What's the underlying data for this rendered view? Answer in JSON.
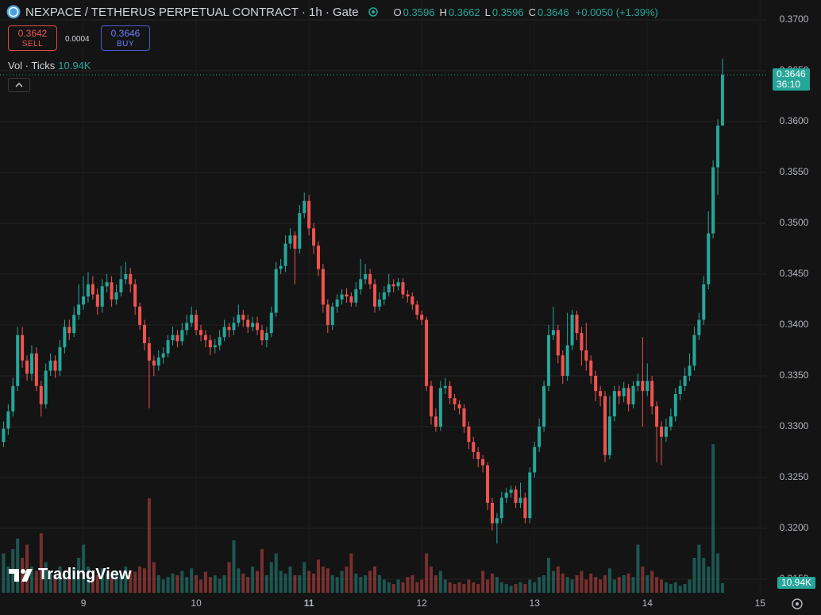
{
  "chart_data": {
    "type": "candlestick",
    "title": "NEXPACE / TETHERUS PERPETUAL CONTRACT · 1h · Gate",
    "ohlc_labels": [
      "O",
      "H",
      "L",
      "C"
    ],
    "change": "+0.0050 (+1.39%)",
    "volume_indicator": "Vol · Ticks",
    "volume_last_label": "10.94K",
    "countdown": "36:10",
    "up_color": "#26a69a",
    "down_color": "#ef5350",
    "grid": true,
    "ylim": [
      0.31351,
      0.37195
    ],
    "yticks": [
      {
        "value": 0.315,
        "label": "0.3150"
      },
      {
        "value": 0.32,
        "label": "0.3200"
      },
      {
        "value": 0.325,
        "label": "0.3250"
      },
      {
        "value": 0.33,
        "label": "0.3300"
      },
      {
        "value": 0.335,
        "label": "0.3350"
      },
      {
        "value": 0.34,
        "label": "0.3400"
      },
      {
        "value": 0.345,
        "label": "0.3450"
      },
      {
        "value": 0.35,
        "label": "0.3500"
      },
      {
        "value": 0.355,
        "label": "0.3550"
      },
      {
        "value": 0.36,
        "label": "0.3600"
      },
      {
        "value": 0.365,
        "label": "0.3650"
      },
      {
        "value": 0.37,
        "label": "0.3700"
      }
    ],
    "xlim": [
      -0.75,
      162.3
    ],
    "xticks": [
      {
        "value": 17,
        "label": "9"
      },
      {
        "value": 41,
        "label": "10"
      },
      {
        "value": 65,
        "label": "11"
      },
      {
        "value": 89,
        "label": "12"
      },
      {
        "value": 113,
        "label": "13"
      },
      {
        "value": 137,
        "label": "14"
      },
      {
        "value": 161,
        "label": "15"
      }
    ],
    "y2lim": [
      0,
      200000
    ],
    "open": [
      0.3285,
      0.3298,
      0.3315,
      0.334,
      0.339,
      0.3365,
      0.3352,
      0.3372,
      0.334,
      0.3322,
      0.3355,
      0.3365,
      0.3355,
      0.3378,
      0.3398,
      0.3392,
      0.341,
      0.342,
      0.3428,
      0.344,
      0.343,
      0.3418,
      0.3438,
      0.3442,
      0.3425,
      0.3432,
      0.3445,
      0.345,
      0.344,
      0.3418,
      0.34,
      0.3382,
      0.3365,
      0.336,
      0.3368,
      0.3372,
      0.3385,
      0.339,
      0.3384,
      0.3395,
      0.3402,
      0.341,
      0.3395,
      0.339,
      0.3385,
      0.3378,
      0.338,
      0.3388,
      0.3398,
      0.3395,
      0.3402,
      0.341,
      0.3405,
      0.3398,
      0.3402,
      0.3395,
      0.3385,
      0.3392,
      0.3412,
      0.3455,
      0.3458,
      0.348,
      0.3488,
      0.3475,
      0.351,
      0.3522,
      0.3495,
      0.3478,
      0.3455,
      0.342,
      0.34,
      0.3418,
      0.3425,
      0.343,
      0.3428,
      0.3422,
      0.3435,
      0.3445,
      0.345,
      0.344,
      0.3418,
      0.3425,
      0.3432,
      0.344,
      0.3438,
      0.3442,
      0.343,
      0.3428,
      0.342,
      0.341,
      0.3405,
      0.334,
      0.331,
      0.33,
      0.3338,
      0.334,
      0.3328,
      0.3322,
      0.3318,
      0.33,
      0.3285,
      0.3275,
      0.3268,
      0.3262,
      0.3225,
      0.3205,
      0.321,
      0.323,
      0.3235,
      0.3238,
      0.3225,
      0.323,
      0.321,
      0.3255,
      0.328,
      0.33,
      0.334,
      0.339,
      0.3395,
      0.337,
      0.335,
      0.338,
      0.341,
      0.3392,
      0.3375,
      0.3365,
      0.335,
      0.3335,
      0.333,
      0.3272,
      0.331,
      0.3335,
      0.333,
      0.3338,
      0.3322,
      0.334,
      0.3345,
      0.3335,
      0.3345,
      0.332,
      0.33,
      0.329,
      0.33,
      0.331,
      0.3332,
      0.334,
      0.335,
      0.336,
      0.339,
      0.3405,
      0.344,
      0.349,
      0.3555,
      0.3596
    ],
    "high": [
      0.3305,
      0.3322,
      0.3348,
      0.3398,
      0.3398,
      0.337,
      0.338,
      0.3378,
      0.3345,
      0.3362,
      0.3372,
      0.337,
      0.3385,
      0.3405,
      0.3405,
      0.3418,
      0.344,
      0.3448,
      0.3452,
      0.3448,
      0.3436,
      0.3445,
      0.345,
      0.3448,
      0.344,
      0.3458,
      0.3462,
      0.3456,
      0.3445,
      0.3422,
      0.3405,
      0.3388,
      0.337,
      0.3375,
      0.3378,
      0.339,
      0.3398,
      0.3395,
      0.3402,
      0.341,
      0.3418,
      0.3415,
      0.34,
      0.3395,
      0.339,
      0.3386,
      0.3395,
      0.3405,
      0.3402,
      0.3408,
      0.342,
      0.3415,
      0.341,
      0.3408,
      0.3408,
      0.34,
      0.3398,
      0.3418,
      0.3462,
      0.3465,
      0.3488,
      0.3495,
      0.3492,
      0.3518,
      0.353,
      0.3528,
      0.35,
      0.3482,
      0.346,
      0.3425,
      0.3422,
      0.343,
      0.3435,
      0.3436,
      0.3432,
      0.3442,
      0.3465,
      0.346,
      0.3455,
      0.3445,
      0.3432,
      0.3438,
      0.345,
      0.3445,
      0.3446,
      0.3446,
      0.3434,
      0.3432,
      0.3424,
      0.3414,
      0.3408,
      0.3345,
      0.3318,
      0.3345,
      0.3348,
      0.3345,
      0.3332,
      0.3326,
      0.3322,
      0.3305,
      0.329,
      0.328,
      0.3272,
      0.3265,
      0.323,
      0.3215,
      0.3236,
      0.324,
      0.3242,
      0.3242,
      0.3245,
      0.3235,
      0.326,
      0.3285,
      0.3308,
      0.3345,
      0.34,
      0.3418,
      0.34,
      0.3375,
      0.3412,
      0.3415,
      0.3414,
      0.3398,
      0.3402,
      0.337,
      0.3355,
      0.334,
      0.3335,
      0.333,
      0.334,
      0.334,
      0.3344,
      0.3342,
      0.3345,
      0.3352,
      0.3388,
      0.3362,
      0.335,
      0.3325,
      0.3305,
      0.3308,
      0.3318,
      0.3338,
      0.3346,
      0.3358,
      0.3372,
      0.3398,
      0.3412,
      0.3448,
      0.3512,
      0.3562,
      0.3602,
      0.3662
    ],
    "low": [
      0.328,
      0.3292,
      0.331,
      0.3335,
      0.3358,
      0.3345,
      0.3345,
      0.3335,
      0.331,
      0.3318,
      0.335,
      0.3348,
      0.335,
      0.3372,
      0.3385,
      0.3388,
      0.3405,
      0.3415,
      0.3422,
      0.3425,
      0.341,
      0.3412,
      0.3432,
      0.3418,
      0.342,
      0.3428,
      0.344,
      0.3432,
      0.341,
      0.3395,
      0.3375,
      0.3318,
      0.335,
      0.3355,
      0.3362,
      0.3368,
      0.338,
      0.3378,
      0.338,
      0.339,
      0.3398,
      0.339,
      0.3384,
      0.3378,
      0.337,
      0.3372,
      0.3375,
      0.3384,
      0.3388,
      0.339,
      0.3398,
      0.3398,
      0.3392,
      0.3394,
      0.339,
      0.338,
      0.3378,
      0.3388,
      0.3408,
      0.345,
      0.3452,
      0.3475,
      0.344,
      0.347,
      0.3505,
      0.3488,
      0.347,
      0.3448,
      0.3412,
      0.3392,
      0.3395,
      0.3412,
      0.342,
      0.3422,
      0.3418,
      0.3418,
      0.343,
      0.344,
      0.3435,
      0.3412,
      0.3414,
      0.342,
      0.3428,
      0.3432,
      0.3434,
      0.3426,
      0.3422,
      0.3415,
      0.3405,
      0.34,
      0.3335,
      0.3302,
      0.3295,
      0.3296,
      0.3332,
      0.3322,
      0.3316,
      0.3312,
      0.3294,
      0.3278,
      0.3268,
      0.326,
      0.3255,
      0.3218,
      0.3198,
      0.3185,
      0.3205,
      0.3225,
      0.323,
      0.322,
      0.322,
      0.3205,
      0.3205,
      0.325,
      0.3275,
      0.3295,
      0.3335,
      0.3385,
      0.3362,
      0.3342,
      0.3345,
      0.3375,
      0.3385,
      0.336,
      0.3355,
      0.3342,
      0.3325,
      0.332,
      0.3265,
      0.3268,
      0.3305,
      0.3322,
      0.3324,
      0.3315,
      0.3318,
      0.3335,
      0.33,
      0.333,
      0.3312,
      0.3265,
      0.3262,
      0.3285,
      0.3296,
      0.3305,
      0.3326,
      0.3335,
      0.3345,
      0.3355,
      0.3385,
      0.34,
      0.3435,
      0.3485,
      0.3528,
      0.3596
    ],
    "close": [
      0.3298,
      0.3315,
      0.334,
      0.339,
      0.3365,
      0.3352,
      0.3372,
      0.334,
      0.3322,
      0.3355,
      0.3365,
      0.3355,
      0.3378,
      0.3398,
      0.3392,
      0.341,
      0.342,
      0.3428,
      0.344,
      0.343,
      0.3418,
      0.3438,
      0.3442,
      0.3425,
      0.3432,
      0.3445,
      0.345,
      0.344,
      0.3418,
      0.34,
      0.3382,
      0.3365,
      0.336,
      0.3368,
      0.3372,
      0.3385,
      0.339,
      0.3384,
      0.3395,
      0.3402,
      0.341,
      0.3395,
      0.339,
      0.3385,
      0.3378,
      0.338,
      0.3388,
      0.3398,
      0.3395,
      0.3402,
      0.341,
      0.3405,
      0.3398,
      0.3402,
      0.3395,
      0.3385,
      0.3392,
      0.3412,
      0.3455,
      0.3458,
      0.348,
      0.3488,
      0.3475,
      0.351,
      0.3522,
      0.3495,
      0.3478,
      0.3455,
      0.342,
      0.34,
      0.3418,
      0.3425,
      0.343,
      0.3428,
      0.3422,
      0.3435,
      0.3445,
      0.345,
      0.344,
      0.3418,
      0.3425,
      0.3432,
      0.344,
      0.3438,
      0.3442,
      0.343,
      0.3428,
      0.342,
      0.341,
      0.3405,
      0.334,
      0.331,
      0.33,
      0.3338,
      0.334,
      0.3328,
      0.3322,
      0.3318,
      0.33,
      0.3285,
      0.3275,
      0.3268,
      0.3262,
      0.3225,
      0.3205,
      0.321,
      0.323,
      0.3235,
      0.3238,
      0.3225,
      0.323,
      0.321,
      0.3255,
      0.328,
      0.33,
      0.334,
      0.339,
      0.3395,
      0.337,
      0.335,
      0.338,
      0.341,
      0.3392,
      0.3375,
      0.3365,
      0.335,
      0.3335,
      0.333,
      0.3272,
      0.331,
      0.3335,
      0.333,
      0.3338,
      0.3322,
      0.334,
      0.3345,
      0.3335,
      0.3345,
      0.332,
      0.33,
      0.329,
      0.33,
      0.331,
      0.3332,
      0.334,
      0.335,
      0.336,
      0.339,
      0.3405,
      0.344,
      0.349,
      0.3555,
      0.3596,
      0.3646
    ],
    "volume": [
      45000,
      30000,
      50000,
      62000,
      40000,
      55000,
      30000,
      25000,
      68000,
      35000,
      25000,
      20000,
      30000,
      22000,
      18000,
      28000,
      40000,
      55000,
      30000,
      25000,
      20000,
      28000,
      22000,
      18000,
      25000,
      20000,
      30000,
      26000,
      24000,
      30000,
      28000,
      108000,
      35000,
      20000,
      15000,
      18000,
      22000,
      20000,
      25000,
      18000,
      28000,
      20000,
      15000,
      24000,
      18000,
      20000,
      16000,
      20000,
      35000,
      60000,
      28000,
      22000,
      18000,
      30000,
      25000,
      50000,
      20000,
      35000,
      45000,
      25000,
      22000,
      30000,
      20000,
      20000,
      35000,
      25000,
      22000,
      38000,
      30000,
      28000,
      20000,
      18000,
      25000,
      30000,
      45000,
      22000,
      18000,
      20000,
      25000,
      30000,
      20000,
      15000,
      12000,
      10000,
      15000,
      12000,
      18000,
      20000,
      12000,
      15000,
      45000,
      30000,
      20000,
      25000,
      15000,
      12000,
      10000,
      12000,
      10000,
      15000,
      12000,
      10000,
      25000,
      15000,
      22000,
      18000,
      12000,
      10000,
      8000,
      10000,
      12000,
      10000,
      15000,
      12000,
      18000,
      20000,
      40000,
      25000,
      30000,
      22000,
      18000,
      15000,
      20000,
      25000,
      15000,
      22000,
      18000,
      15000,
      20000,
      28000,
      15000,
      18000,
      20000,
      22000,
      18000,
      55000,
      30000,
      20000,
      25000,
      18000,
      15000,
      12000,
      10000,
      12000,
      8000,
      10000,
      15000,
      40000,
      55000,
      40000,
      30000,
      170000,
      45000,
      10940
    ]
  },
  "order_panel": {
    "sell_price": 0.3642,
    "sell_label": "SELL",
    "spread": 0.0004,
    "buy_price": 0.3646,
    "buy_label": "BUY"
  },
  "logo": "TradingView"
}
